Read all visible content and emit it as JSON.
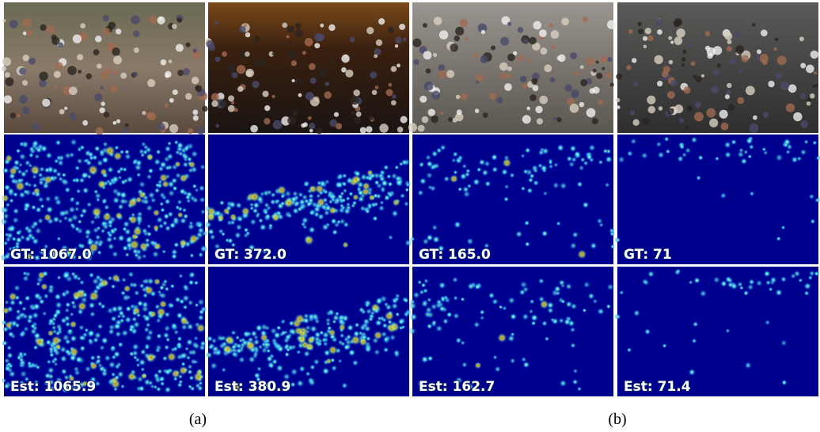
{
  "panels": [
    {
      "gt": "GT: 1067.0",
      "est": "Est: 1065.9"
    },
    {
      "gt": "GT: 372.0",
      "est": "Est: 380.9"
    },
    {
      "gt": "GT: 165.0",
      "est": "Est: 162.7"
    },
    {
      "gt": "GT: 71",
      "est": "Est: 71.4"
    }
  ],
  "captions": [
    "(a)",
    "(b)"
  ]
}
